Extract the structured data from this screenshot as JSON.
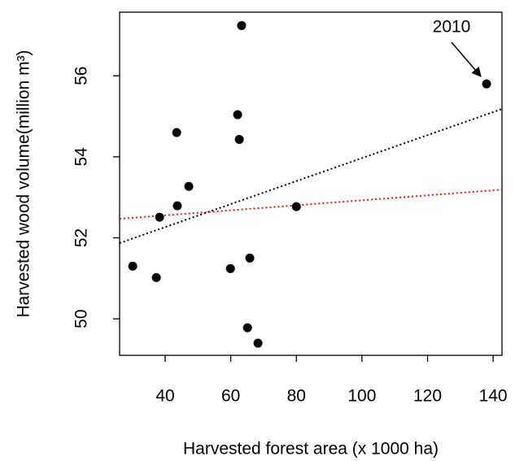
{
  "chart_data": {
    "type": "scatter",
    "x_label": "Harvested forest area (x 1000 ha)",
    "y_label": "Harvested wood volume(million m³)",
    "annotation": "2010",
    "xlim": [
      26.1,
      142.7
    ],
    "ylim": [
      49.1,
      57.57
    ],
    "xticks": [
      40,
      60,
      80,
      100,
      120,
      140
    ],
    "yticks": [
      50,
      52,
      54,
      56
    ],
    "grid": false,
    "series": [
      {
        "color": "#000000",
        "x": [
          30.1,
          37.3,
          38.3,
          43.7,
          43.5,
          47.2,
          59.9,
          62.1,
          62.6,
          63.3,
          65.1,
          65.8,
          68.3,
          80.0,
          138.0
        ],
        "values": [
          51.3,
          51.02,
          52.51,
          52.79,
          54.6,
          53.27,
          51.24,
          55.04,
          54.43,
          57.24,
          49.78,
          51.5,
          49.4,
          52.77,
          55.8
        ]
      }
    ],
    "lines": [
      {
        "color": "#000000",
        "x": [
          26.1,
          142.7
        ],
        "values": [
          51.87,
          55.18
        ]
      },
      {
        "color": "#e41a1c",
        "x": [
          26.1,
          142.7
        ],
        "values": [
          52.47,
          53.19
        ]
      }
    ]
  }
}
